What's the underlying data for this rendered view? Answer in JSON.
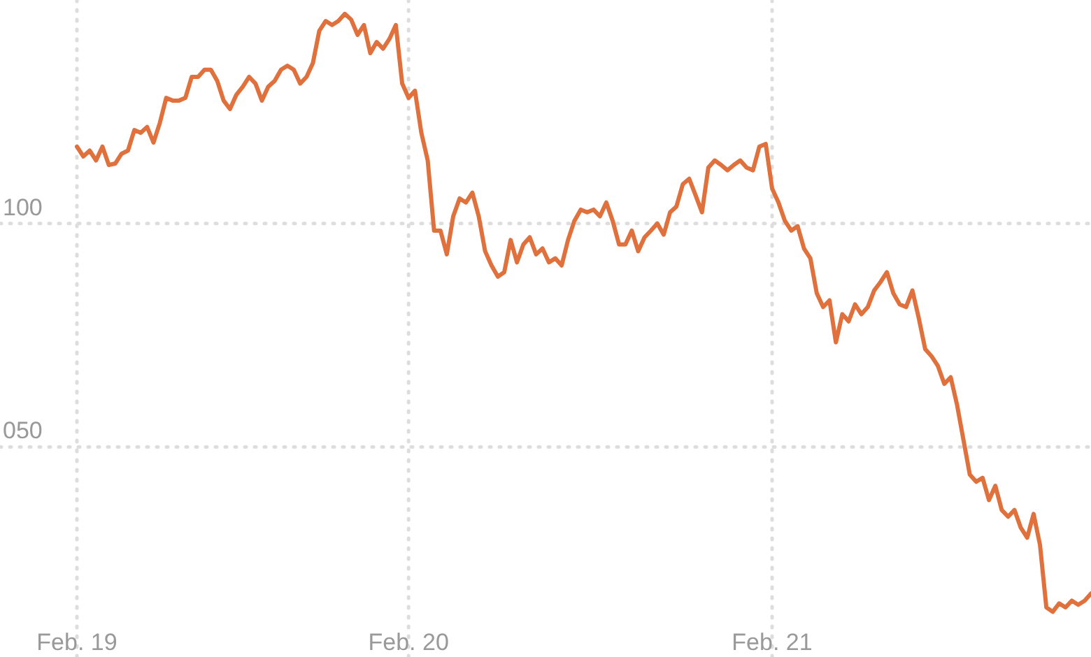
{
  "chart_data": {
    "type": "line",
    "categories": [
      "Feb. 19",
      null,
      null,
      null,
      null,
      null,
      null,
      null,
      null,
      null,
      null,
      null,
      null,
      null,
      null,
      null,
      null,
      null,
      null,
      null,
      null,
      null,
      null,
      null,
      null,
      null,
      null,
      null,
      null,
      null,
      null,
      null,
      null,
      null,
      null,
      null,
      null,
      null,
      null,
      null,
      null,
      null,
      null,
      null,
      null,
      null,
      null,
      null,
      null,
      null,
      null,
      null,
      "Feb. 20",
      null,
      null,
      null,
      null,
      null,
      null,
      null,
      null,
      null,
      null,
      null,
      null,
      null,
      null,
      null,
      null,
      null,
      null,
      null,
      null,
      null,
      null,
      null,
      null,
      null,
      null,
      null,
      null,
      null,
      null,
      null,
      null,
      null,
      null,
      null,
      null,
      null,
      null,
      null,
      null,
      null,
      null,
      null,
      null,
      null,
      null,
      null,
      null,
      null,
      null,
      null,
      null,
      null,
      null,
      null,
      null,
      "Feb. 21",
      null,
      null,
      null,
      null,
      null,
      null,
      null,
      null,
      null,
      null,
      null,
      null,
      null,
      null,
      null,
      null,
      null,
      null,
      null,
      null,
      null,
      null,
      null,
      null,
      null,
      null,
      null,
      null,
      null,
      null,
      null,
      null,
      null,
      null,
      null,
      null,
      null,
      null,
      null,
      null,
      null,
      null,
      null,
      null,
      null,
      null,
      null,
      null,
      null,
      null
    ],
    "series": [
      {
        "color": "#e0703c",
        "values": [
          117.2,
          115,
          116.3,
          114.1,
          117.2,
          113.1,
          113.4,
          115.6,
          116.3,
          120.9,
          120.3,
          121.6,
          118.1,
          122.5,
          128.1,
          127.5,
          127.5,
          128.1,
          132.8,
          132.8,
          134.4,
          134.4,
          131.9,
          127.5,
          125.6,
          128.8,
          130.6,
          132.8,
          131.3,
          127.5,
          130.6,
          131.9,
          134.4,
          135.3,
          134.4,
          131.3,
          132.8,
          135.9,
          143.1,
          145.3,
          144.4,
          145.3,
          146.9,
          145.6,
          142.2,
          144.4,
          138.1,
          140.6,
          139.1,
          141.3,
          144.4,
          131.3,
          128.1,
          129.7,
          120.3,
          114.1,
          98.4,
          98.4,
          93.1,
          101.6,
          105.6,
          104.7,
          106.9,
          101.6,
          93.8,
          90.6,
          88.1,
          89.1,
          96.3,
          91.3,
          95.3,
          96.9,
          93.1,
          94.4,
          91.3,
          92.2,
          90.6,
          96.3,
          100.6,
          103.1,
          102.5,
          103.1,
          101.6,
          104.7,
          100.6,
          95.3,
          95.3,
          98.4,
          93.8,
          96.9,
          98.4,
          100,
          97.5,
          102.5,
          103.8,
          108.8,
          110,
          106.3,
          102.5,
          112.5,
          114.1,
          113.1,
          111.9,
          113.1,
          114.1,
          112.5,
          111.9,
          117.2,
          117.8,
          107.8,
          104.7,
          100.6,
          98.4,
          99.4,
          94.4,
          92.2,
          84.4,
          81.3,
          82.8,
          73.4,
          79.7,
          78.1,
          81.9,
          79.7,
          81.3,
          85,
          86.9,
          89.1,
          84.4,
          81.9,
          81.3,
          85,
          78.8,
          71.9,
          70.3,
          68.1,
          64.1,
          65.6,
          59.4,
          51.6,
          43.8,
          42.2,
          43.1,
          38.1,
          41.3,
          35.9,
          34.4,
          35.9,
          31.9,
          29.7,
          35,
          28.1,
          14.1,
          13.1,
          15,
          14.1,
          15.6,
          14.7,
          15.6,
          17.2
        ]
      }
    ],
    "ylim": [
      3,
      150
    ],
    "yticks": [
      {
        "value": 100,
        "label": "100"
      },
      {
        "value": 50,
        "label": "050"
      }
    ],
    "grid": true,
    "line_style": "solid",
    "marker": "none"
  }
}
